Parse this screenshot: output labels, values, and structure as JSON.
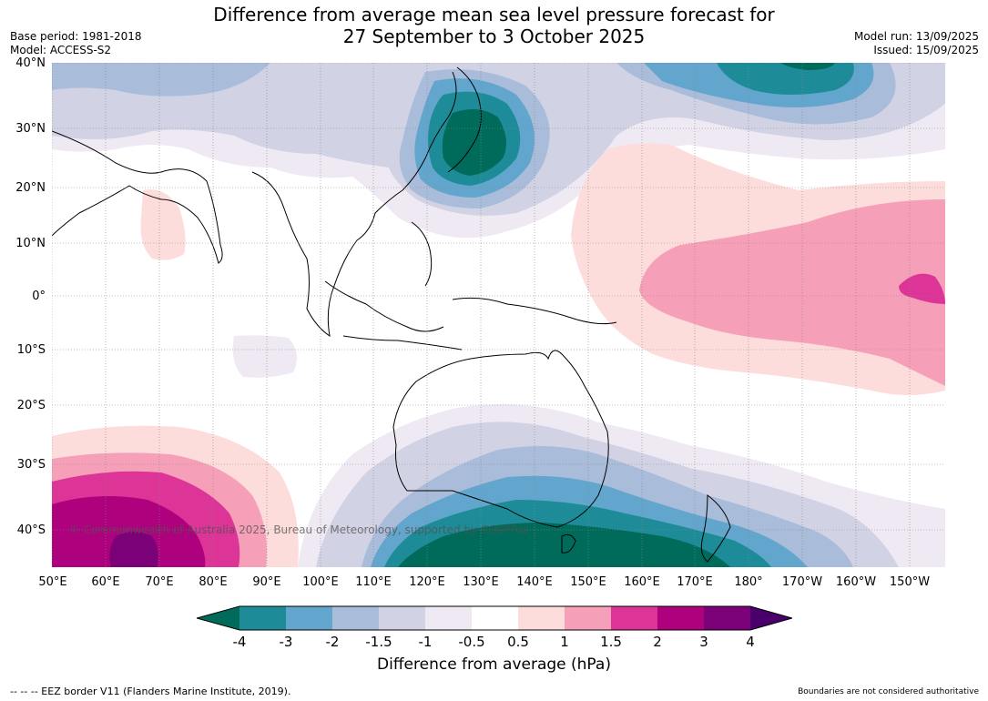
{
  "title": {
    "line1": "Difference from average mean sea level pressure forecast for",
    "line2": "27 September to 3 October 2025"
  },
  "meta": {
    "base_period": "Base period: 1981-2018",
    "model": "Model: ACCESS-S2",
    "model_run": "Model run: 13/09/2025",
    "issued": "Issued: 15/09/2025"
  },
  "map": {
    "lat_labels": [
      "40°N",
      "30°N",
      "20°N",
      "10°N",
      "0°",
      "10°S",
      "20°S",
      "30°S",
      "40°S"
    ],
    "lon_labels": [
      "50°E",
      "60°E",
      "70°E",
      "80°E",
      "90°E",
      "100°E",
      "110°E",
      "120°E",
      "130°E",
      "140°E",
      "150°E",
      "160°E",
      "170°E",
      "180°",
      "170°W",
      "160°W",
      "150°W"
    ],
    "copyright": "© Commonwealth of Australia 2025, Bureau of Meteorology, supported by COSPPac"
  },
  "colorbar": {
    "label": "Difference from average (hPa)",
    "ticks": [
      "-4",
      "-3",
      "-2",
      "-1.5",
      "-1",
      "-0.5",
      "0.5",
      "1",
      "1.5",
      "2",
      "3",
      "4"
    ],
    "colors": {
      "lt_m4": "#006b5a",
      "m4_m3": "#1e8c98",
      "m3_m2": "#63a6cd",
      "m2_m15": "#a9bcd9",
      "m15_m1": "#d2d2e5",
      "m1_m05": "#efe9f3",
      "m05_05": "#ffffff",
      "05_1": "#fddddb",
      "1_15": "#f69fb8",
      "15_2": "#dd3497",
      "2_3": "#ae017e",
      "3_4": "#7a0177",
      "gt_4": "#49006a"
    }
  },
  "footer": {
    "eez": "--  --  -- EEZ border V11 (Flanders Marine Institute, 2019).",
    "disclaimer": "Boundaries are not considered authoritative"
  }
}
